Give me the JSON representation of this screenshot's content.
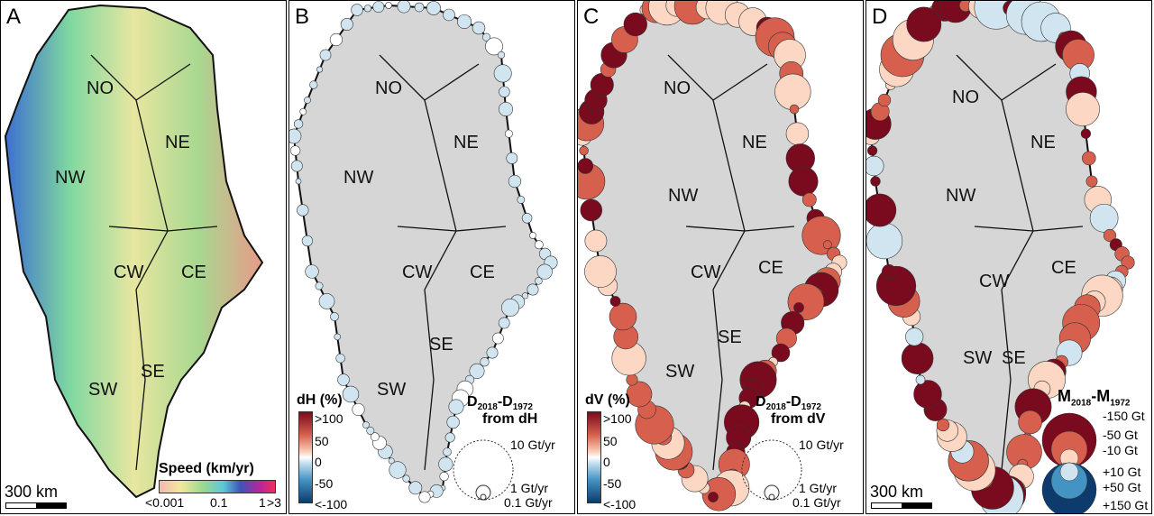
{
  "panels": [
    {
      "letter": "A",
      "regions": [
        "NO",
        "NE",
        "NW",
        "CW",
        "CE",
        "SE",
        "SW"
      ]
    },
    {
      "letter": "B",
      "regions": [
        "NO",
        "NE",
        "NW",
        "CW",
        "CE",
        "SE",
        "SW"
      ]
    },
    {
      "letter": "C",
      "regions": [
        "NO",
        "NE",
        "NW",
        "CW",
        "CE",
        "SE",
        "SW"
      ]
    },
    {
      "letter": "D",
      "regions": [
        "NO",
        "NE",
        "NW",
        "CW",
        "CE",
        "SE",
        "SW"
      ]
    }
  ],
  "scale_label": "300 km",
  "speed_legend": {
    "title": "Speed (km/yr)",
    "ticks": [
      "<0.001",
      "0.1",
      "1",
      ">3"
    ],
    "colors": [
      "#f4b8b0",
      "#f2e89a",
      "#9fd88e",
      "#5ec8d8",
      "#3d54b8",
      "#c0239a",
      "#f0305a"
    ]
  },
  "dh_legend": {
    "title": "dH (%)",
    "ticks": [
      ">100",
      "50",
      "0",
      "-50",
      "<-100"
    ],
    "diff_title": "D",
    "sub1": "2018",
    "sub2": "1972",
    "from": "from dH",
    "sizes": [
      "10 Gt/yr",
      "1 Gt/yr",
      "0.1 Gt/yr"
    ]
  },
  "dv_legend": {
    "title": "dV (%)",
    "ticks": [
      ">100",
      "50",
      "0",
      "-50",
      "<-100"
    ],
    "diff_title": "D",
    "sub1": "2018",
    "sub2": "1972",
    "from": "from dV",
    "sizes": [
      "10 Gt/yr",
      "1 Gt/yr",
      "0.1 Gt/yr"
    ]
  },
  "mass_legend": {
    "title": "M",
    "sub1": "2018",
    "sub2": "1972",
    "ticks": [
      "-150 Gt",
      "-50 Gt",
      "-10 Gt",
      "+10 Gt",
      "+50 Gt",
      "+150 Gt"
    ]
  },
  "colors": {
    "ice": "#d6d6d6",
    "loss_dark": "#7a0a1e",
    "loss_mid": "#d6604d",
    "loss_light": "#fbd7c4",
    "gain_light": "#d1e5f0",
    "gain_mid": "#4393c3",
    "gain_dark": "#0d3b6e"
  }
}
